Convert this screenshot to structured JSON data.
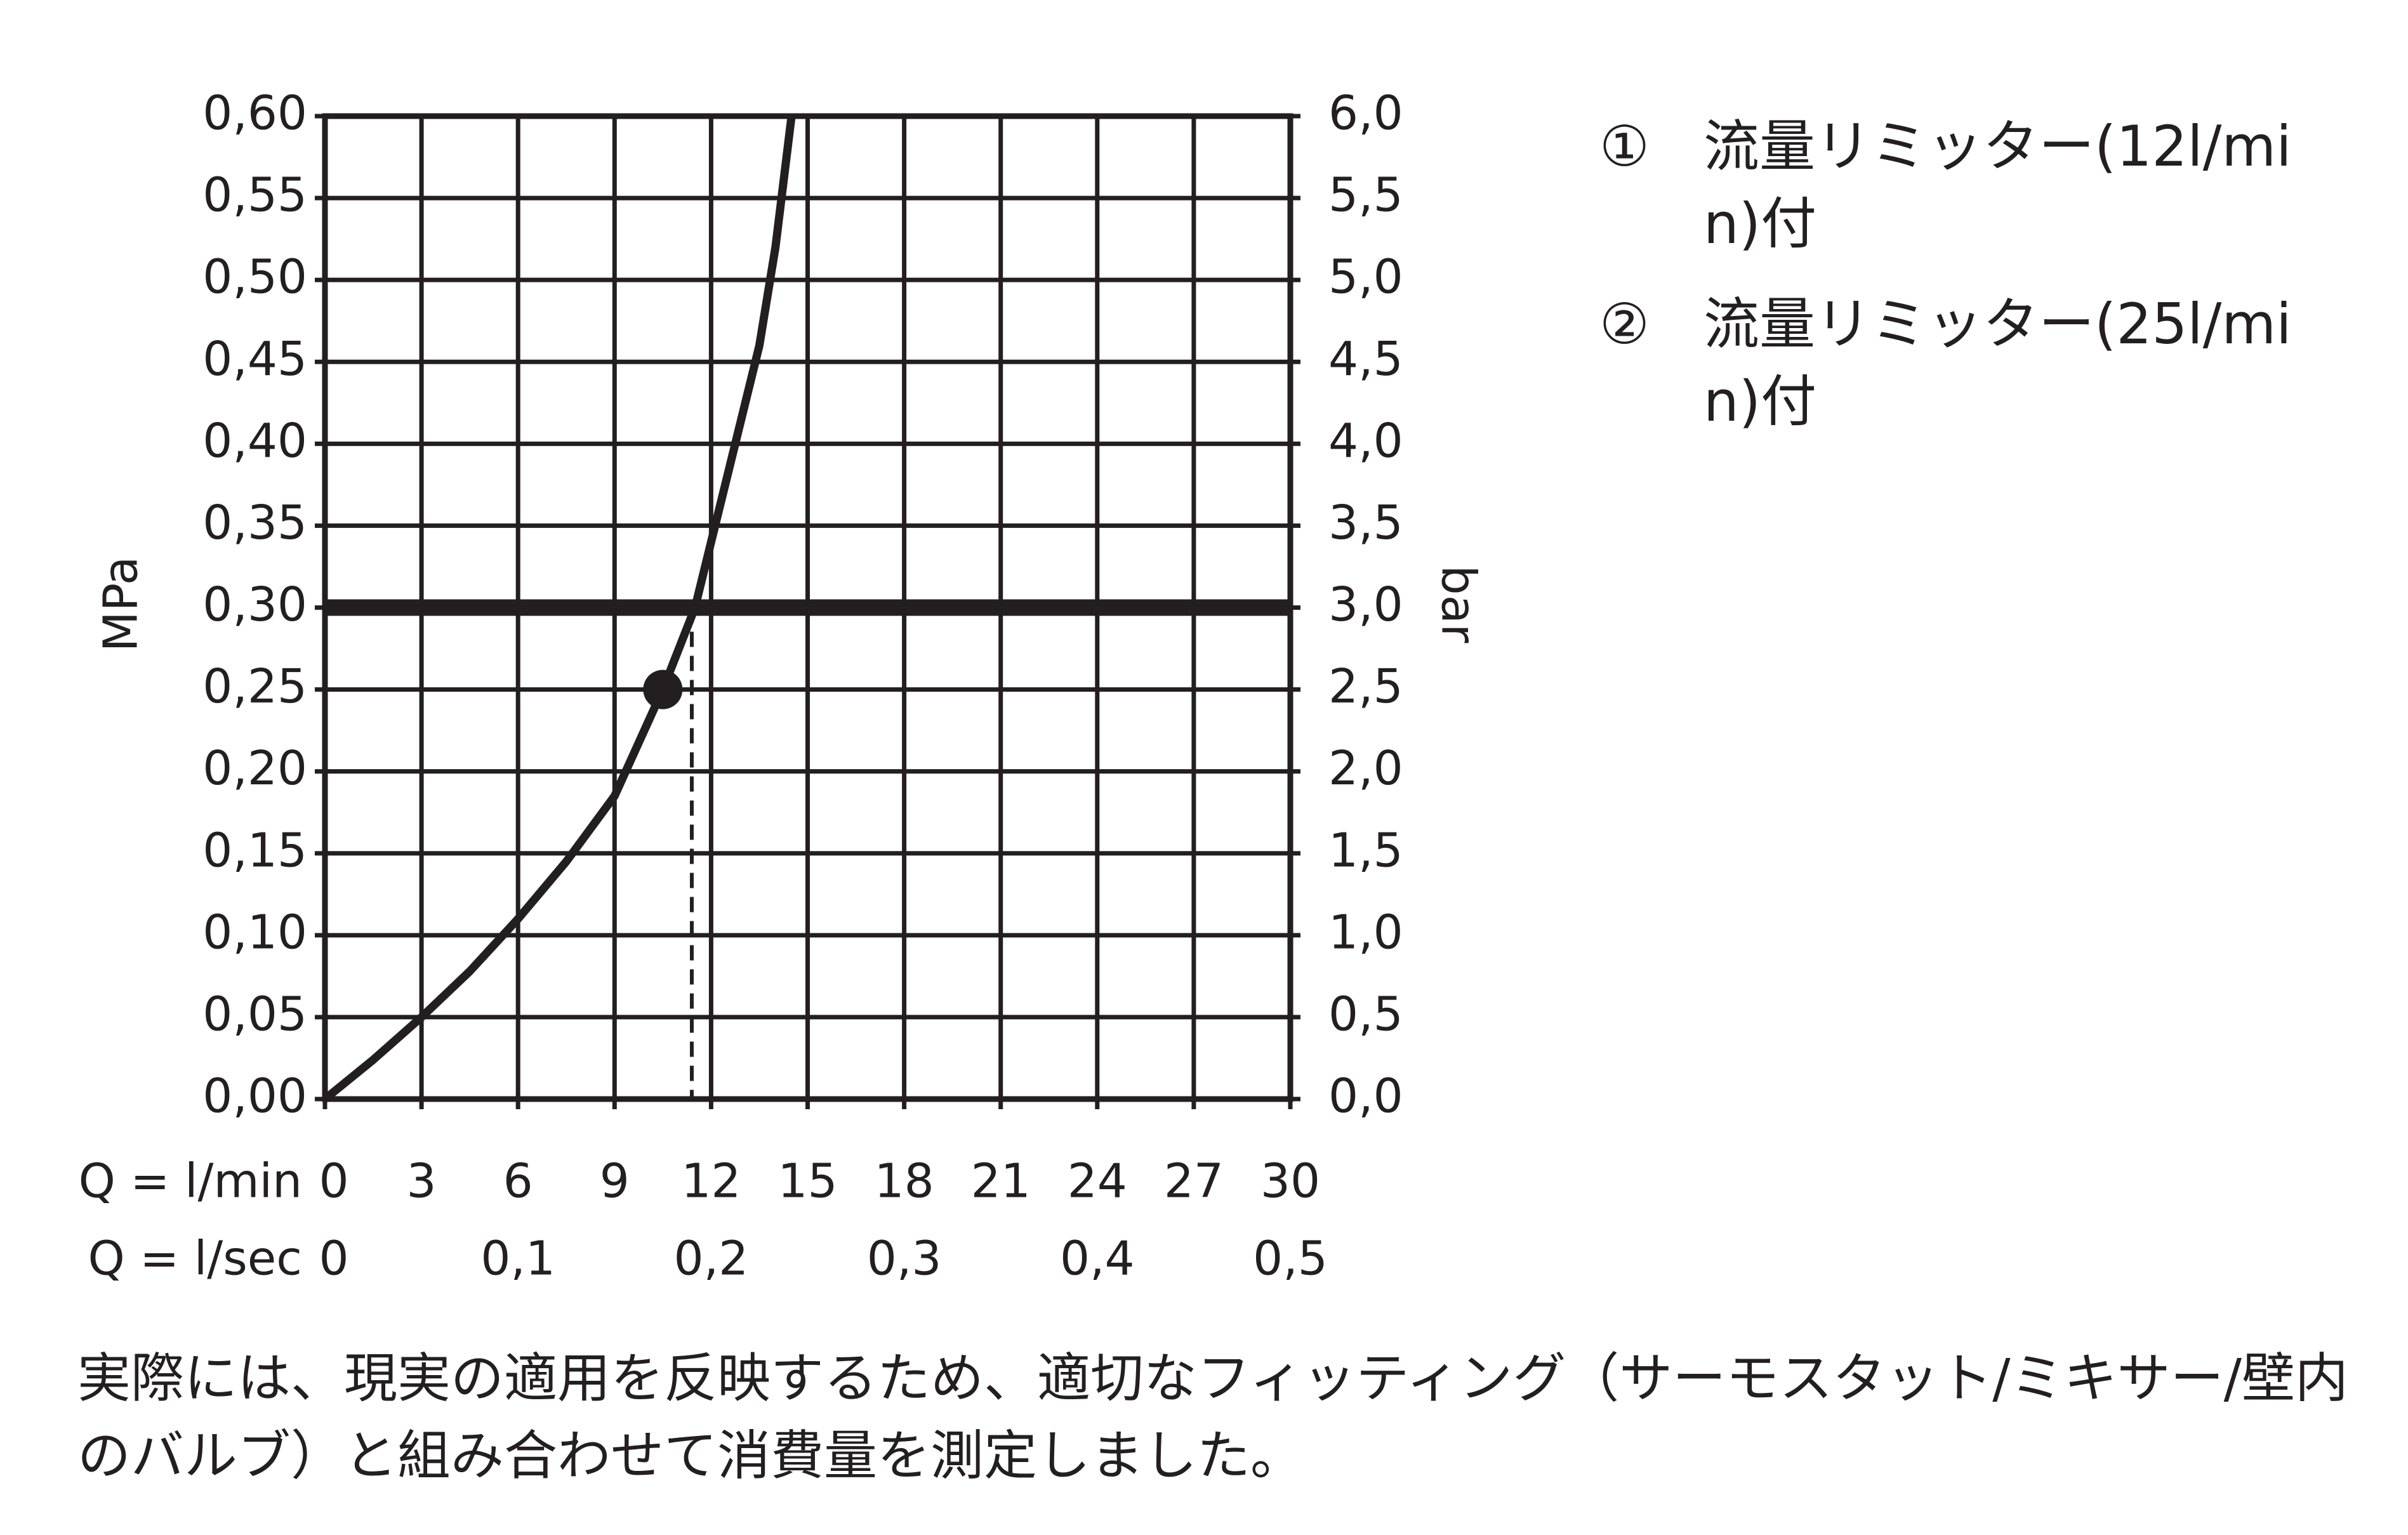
{
  "chart_data": {
    "type": "line",
    "x": [
      0,
      1.5,
      3,
      4.5,
      6,
      7.5,
      9,
      10.5,
      11.5,
      12,
      12.75,
      13.5,
      14,
      14.5
    ],
    "values": [
      0,
      0.024,
      0.05,
      0.078,
      0.11,
      0.145,
      0.185,
      0.25,
      0.3,
      0.34,
      0.4,
      0.46,
      0.52,
      0.6
    ],
    "color": "#231f20",
    "point": {
      "x": 10.5,
      "y": 0.25
    },
    "hline": 0.3,
    "vline": 11.4,
    "xlim": [
      0,
      30
    ],
    "xticks": [
      0,
      3,
      6,
      9,
      12,
      15,
      18,
      21,
      24,
      27,
      30
    ],
    "x2lim": [
      0,
      0.5
    ],
    "x2ticks": [
      0,
      {
        "value": 0.1,
        "label": "0,1"
      },
      {
        "value": 0.2,
        "label": "0,2"
      },
      {
        "value": 0.3,
        "label": "0,3"
      },
      {
        "value": 0.4,
        "label": "0,4"
      },
      {
        "value": 0.5,
        "label": "0,5"
      }
    ],
    "ylim": [
      0,
      0.6
    ],
    "yticks": [
      {
        "value": 0,
        "label": "0,00"
      },
      {
        "value": 0.05,
        "label": "0,05"
      },
      {
        "value": 0.1,
        "label": "0,10"
      },
      {
        "value": 0.15,
        "label": "0,15"
      },
      {
        "value": 0.2,
        "label": "0,20"
      },
      {
        "value": 0.25,
        "label": "0,25"
      },
      {
        "value": 0.3,
        "label": "0,30"
      },
      {
        "value": 0.35,
        "label": "0,35"
      },
      {
        "value": 0.4,
        "label": "0,40"
      },
      {
        "value": 0.45,
        "label": "0,45"
      },
      {
        "value": 0.5,
        "label": "0,50"
      },
      {
        "value": 0.55,
        "label": "0,55"
      },
      {
        "value": 0.6,
        "label": "0,60"
      }
    ],
    "y2lim": [
      0,
      6
    ],
    "y2ticks": [
      {
        "value": 0,
        "label": "0,0"
      },
      {
        "value": 0.5,
        "label": "0,5"
      },
      {
        "value": 1,
        "label": "1,0"
      },
      {
        "value": 1.5,
        "label": "1,5"
      },
      {
        "value": 2,
        "label": "2,0"
      },
      {
        "value": 2.5,
        "label": "2,5"
      },
      {
        "value": 3,
        "label": "3,0"
      },
      {
        "value": 3.5,
        "label": "3,5"
      },
      {
        "value": 4,
        "label": "4,0"
      },
      {
        "value": 4.5,
        "label": "4,5"
      },
      {
        "value": 5,
        "label": "5,0"
      },
      {
        "value": 5.5,
        "label": "5,5"
      },
      {
        "value": 6,
        "label": "6,0"
      }
    ],
    "xlabel": "Q = l/min",
    "x2label": "Q = l/sec",
    "ylabel": "MPa",
    "y2label": "bar",
    "grid": true,
    "legend": [
      {
        "marker": "①",
        "text": "流量リミッター(12l/min)付"
      },
      {
        "marker": "②",
        "text": "流量リミッター(25l/min)付"
      }
    ]
  },
  "footnote": "実際には、現実の適用を反映するため、適切なフィッティング（サーモスタット/ミキサー/壁内のバルブ）と組み合わせて消費量を測定しました。"
}
